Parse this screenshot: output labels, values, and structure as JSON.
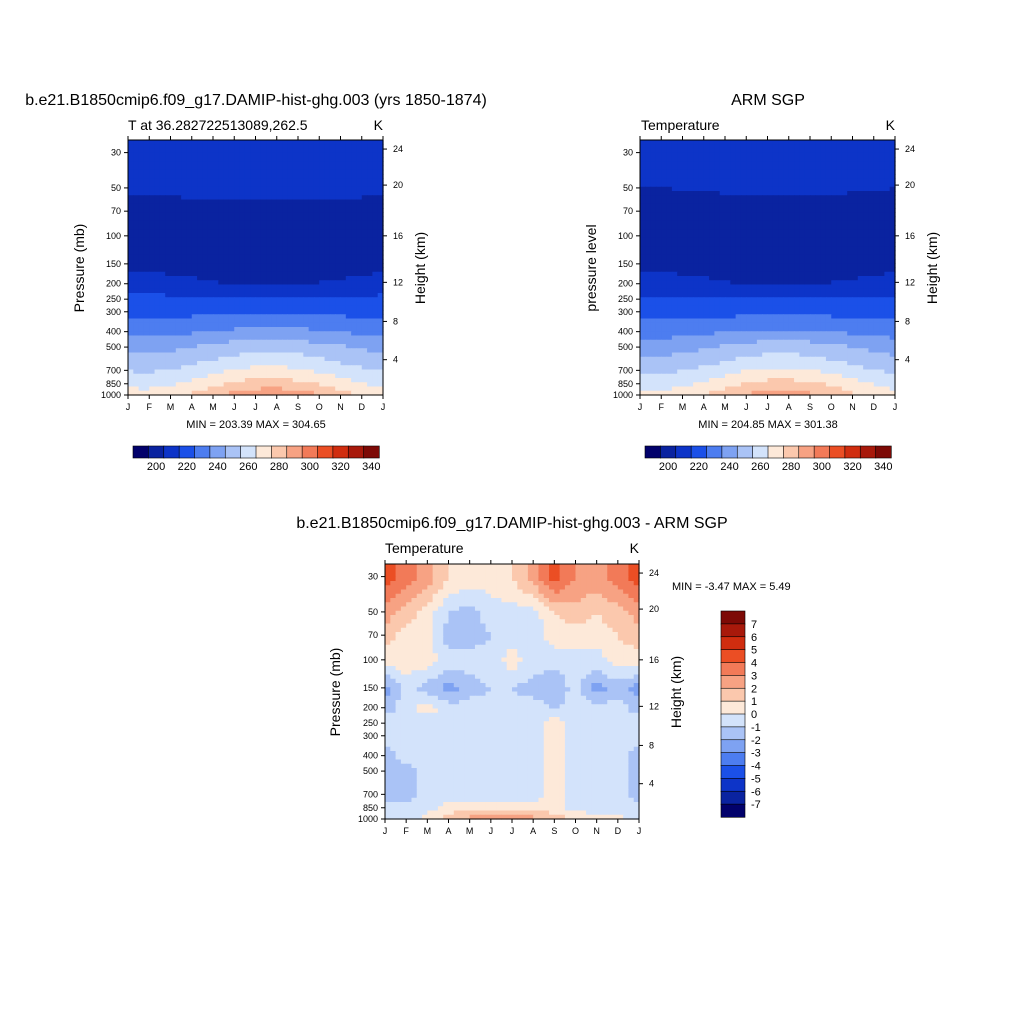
{
  "palette": [
    "#02016b",
    "#0a23a0",
    "#0d34c8",
    "#1b50e8",
    "#4d7df0",
    "#7ea2f2",
    "#aac3f6",
    "#d3e3fb",
    "#fde9d9",
    "#fbc8ad",
    "#f7a283",
    "#f27a58",
    "#eb4e24",
    "#d02d0f",
    "#a8190b",
    "#7d0a06"
  ],
  "chart_data": [
    {
      "type": "heatmap",
      "title": "b.e21.B1850cmip6.f09_g17.DAMIP-hist-ghg.003 (yrs 1850-1874)",
      "subtitle_left": "T at 36.282722513089,262.5",
      "subtitle_right": "K",
      "ylabel": "Pressure (mb)",
      "ylabel_right": "Height (km)",
      "stat": "MIN = 203.39 MAX = 304.65",
      "x_ticks": [
        "J",
        "F",
        "M",
        "A",
        "M",
        "J",
        "J",
        "A",
        "S",
        "O",
        "N",
        "D",
        "J"
      ],
      "y_ticks": [
        "30",
        "50",
        "70",
        "100",
        "150",
        "200",
        "250",
        "300",
        "400",
        "500",
        "700",
        "850",
        "1000"
      ],
      "y_right_ticks": [
        "24",
        "20",
        "16",
        "12",
        "8",
        "4"
      ],
      "y_range_mb": [
        25,
        1000
      ],
      "colorbar_levels": [
        195,
        200,
        210,
        220,
        230,
        240,
        250,
        260,
        270,
        280,
        290,
        300,
        310,
        320,
        330,
        340,
        350
      ],
      "colorbar_labels": [
        "200",
        "220",
        "240",
        "260",
        "280",
        "300",
        "320",
        "340"
      ],
      "profile_levels_mb": [
        30,
        50,
        70,
        100,
        150,
        200,
        250,
        300,
        400,
        500,
        700,
        850,
        1000
      ],
      "profile_values_K": [
        215,
        212,
        207,
        205,
        206,
        211,
        222,
        228,
        240,
        252,
        266,
        276,
        286
      ],
      "seasonal_amplitude_K": [
        2,
        1,
        -1,
        -2,
        -2,
        -2,
        -1,
        1,
        3,
        5,
        7,
        9,
        12
      ]
    },
    {
      "type": "heatmap",
      "title": "ARM SGP",
      "subtitle_left": "Temperature",
      "subtitle_right": "K",
      "ylabel": "pressure level",
      "ylabel_right": "Height (km)",
      "stat": "MIN = 204.85 MAX = 301.38",
      "x_ticks": [
        "J",
        "F",
        "M",
        "A",
        "M",
        "J",
        "J",
        "A",
        "S",
        "O",
        "N",
        "D",
        "J"
      ],
      "y_ticks": [
        "30",
        "50",
        "70",
        "100",
        "150",
        "200",
        "250",
        "300",
        "400",
        "500",
        "700",
        "850",
        "1000"
      ],
      "y_right_ticks": [
        "24",
        "20",
        "16",
        "12",
        "8",
        "4"
      ],
      "y_range_mb": [
        25,
        1000
      ],
      "colorbar_levels": [
        195,
        200,
        210,
        220,
        230,
        240,
        250,
        260,
        270,
        280,
        290,
        300,
        310,
        320,
        330,
        340,
        350
      ],
      "colorbar_labels": [
        "200",
        "220",
        "240",
        "260",
        "280",
        "300",
        "320",
        "340"
      ],
      "profile_levels_mb": [
        30,
        50,
        70,
        100,
        150,
        200,
        250,
        300,
        400,
        500,
        700,
        850,
        1000
      ],
      "profile_values_K": [
        214,
        211,
        206,
        205,
        206,
        211,
        221,
        227,
        239,
        251,
        265,
        275,
        284
      ],
      "seasonal_amplitude_K": [
        2,
        1,
        -1,
        -2,
        -2,
        -2,
        -1,
        1,
        3,
        5,
        7,
        9,
        11
      ]
    },
    {
      "type": "heatmap",
      "title": "b.e21.B1850cmip6.f09_g17.DAMIP-hist-ghg.003 - ARM SGP",
      "subtitle_left": "Temperature",
      "subtitle_right": "K",
      "ylabel": "Pressure (mb)",
      "ylabel_right": "Height (km)",
      "stat": "MIN =  -3.47 MAX =   5.49",
      "x_ticks": [
        "J",
        "F",
        "M",
        "A",
        "M",
        "J",
        "J",
        "A",
        "S",
        "O",
        "N",
        "D",
        "J"
      ],
      "y_ticks": [
        "30",
        "50",
        "70",
        "100",
        "150",
        "200",
        "250",
        "300",
        "400",
        "500",
        "700",
        "850",
        "1000"
      ],
      "y_right_ticks": [
        "24",
        "20",
        "16",
        "12",
        "8",
        "4"
      ],
      "y_range_mb": [
        25,
        1000
      ],
      "colorbar_levels": [
        -8,
        -7,
        -6,
        -5,
        -4,
        -3,
        -2,
        -1,
        0,
        1,
        2,
        3,
        4,
        5,
        6,
        7,
        8
      ],
      "colorbar_labels": [
        "7",
        "6",
        "5",
        "4",
        "3",
        "2",
        "1",
        "0",
        "-1",
        "-2",
        "-3",
        "-4",
        "-5",
        "-6",
        "-7"
      ],
      "diff_grid_levels_mb": [
        30,
        50,
        70,
        100,
        150,
        200,
        250,
        300,
        400,
        500,
        700,
        850,
        1000
      ],
      "diff_grid_values": [
        [
          4.5,
          3.5,
          2.5,
          1.0,
          0.5,
          0.5,
          1.0,
          2.5,
          4.5,
          3.0,
          2.5,
          3.5,
          4.5
        ],
        [
          2.5,
          1.5,
          0.5,
          -1.0,
          -1.5,
          -0.5,
          -0.5,
          -0.5,
          1.0,
          1.5,
          1.0,
          1.5,
          2.5
        ],
        [
          1.5,
          0.5,
          0.5,
          -1.5,
          -1.5,
          -1.0,
          -0.5,
          -0.5,
          0.5,
          0.5,
          0.5,
          1.0,
          1.5
        ],
        [
          0.5,
          0.5,
          0.5,
          -0.5,
          -0.5,
          -0.5,
          0.5,
          -0.5,
          -0.5,
          -0.5,
          -0.5,
          0.5,
          0.5
        ],
        [
          -2.5,
          -0.5,
          -1.5,
          -2.5,
          -1.5,
          -1.0,
          -1.0,
          -1.5,
          -2.0,
          -0.5,
          -2.5,
          -1.5,
          -2.5
        ],
        [
          -1.5,
          -0.5,
          0.5,
          -0.5,
          -0.5,
          -0.5,
          -0.5,
          -0.5,
          -1.0,
          -0.5,
          -0.5,
          -0.5,
          -1.5
        ],
        [
          -0.5,
          -0.5,
          -0.5,
          -0.5,
          -0.5,
          -0.5,
          -0.5,
          -0.5,
          0.5,
          -0.5,
          -0.5,
          -0.5,
          -0.5
        ],
        [
          -0.5,
          -0.5,
          -0.5,
          -0.5,
          -0.5,
          -0.5,
          -0.5,
          -0.5,
          0.5,
          -0.5,
          -0.5,
          -0.5,
          -0.5
        ],
        [
          -1.5,
          -0.5,
          -0.5,
          -0.5,
          -0.5,
          -0.5,
          -0.5,
          -0.5,
          0.5,
          -0.5,
          -0.5,
          -0.5,
          -1.5
        ],
        [
          -1.5,
          -1.5,
          -0.5,
          -0.5,
          -0.5,
          -0.5,
          -0.5,
          -0.5,
          0.5,
          -0.5,
          -0.5,
          -0.5,
          -1.5
        ],
        [
          -1.5,
          -1.5,
          -0.5,
          -0.5,
          -0.5,
          -0.5,
          -0.5,
          -0.5,
          0.5,
          -0.5,
          -0.5,
          -0.5,
          -1.5
        ],
        [
          -0.5,
          -0.5,
          -0.5,
          0.5,
          0.5,
          0.5,
          0.5,
          0.5,
          0.5,
          -0.5,
          -0.5,
          -0.5,
          -0.5
        ],
        [
          -0.5,
          -0.5,
          0.5,
          1.5,
          2.5,
          3.5,
          3.0,
          2.5,
          1.5,
          1.0,
          0.5,
          0.5,
          -0.5
        ]
      ]
    }
  ]
}
